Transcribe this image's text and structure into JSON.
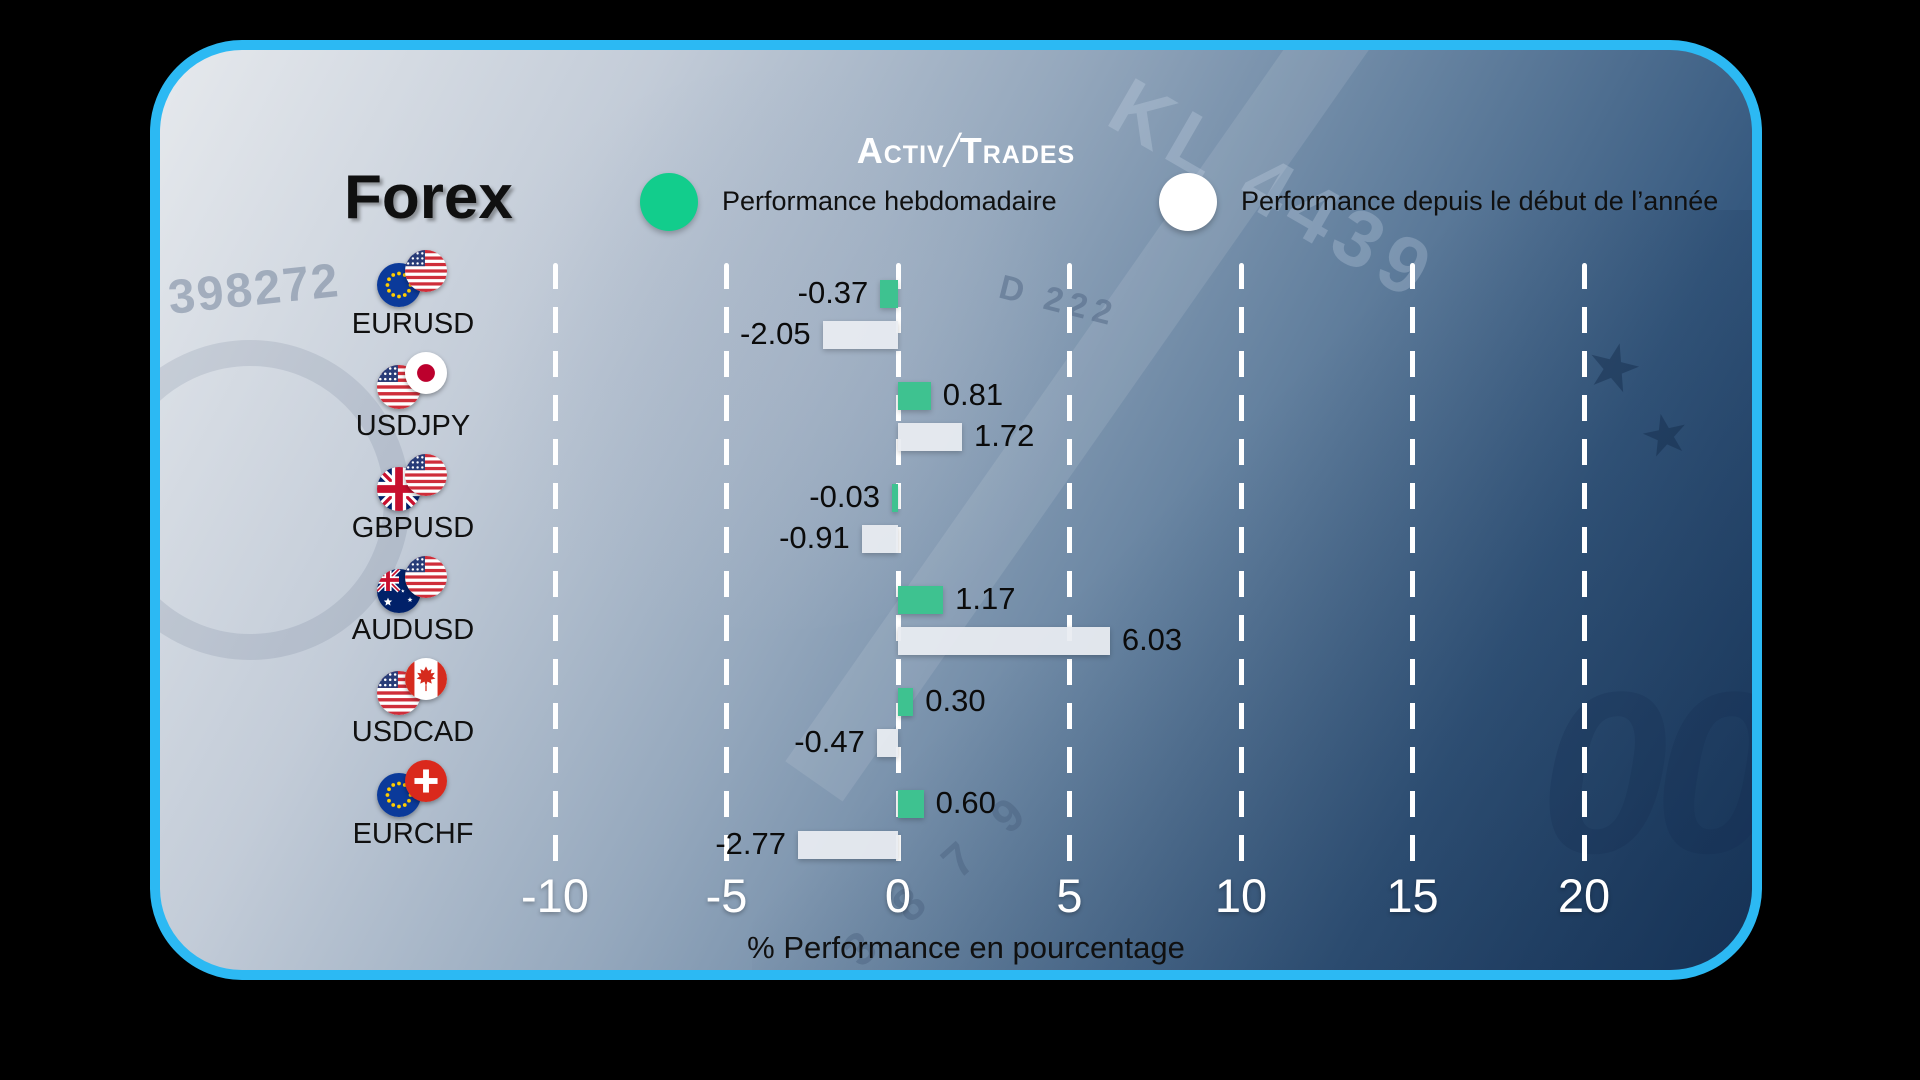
{
  "logo": {
    "activ": "Activ",
    "separator": "/",
    "trades": "Trades"
  },
  "title": "Forex",
  "legend": [
    {
      "label": "Performance hebdomadaire",
      "color": "#12cd8c"
    },
    {
      "label": "Performance depuis le début de l’année",
      "color": "#ffffff"
    }
  ],
  "chart_data": {
    "type": "bar",
    "orientation": "horizontal",
    "title": "Forex",
    "categories": [
      "EURUSD",
      "USDJPY",
      "GBPUSD",
      "AUDUSD",
      "USDCAD",
      "EURCHF"
    ],
    "series": [
      {
        "name": "Performance hebdomadaire",
        "color": "#3ec290",
        "values": [
          -0.37,
          0.81,
          -0.03,
          1.17,
          0.3,
          0.6
        ]
      },
      {
        "name": "Performance depuis le début de l’année",
        "color": "#e9ecf1",
        "values": [
          -2.05,
          1.72,
          -0.91,
          6.03,
          -0.47,
          -2.77
        ]
      }
    ],
    "xlabel": "% Performance en pourcentage",
    "ylabel": "",
    "x_ticks": [
      -10,
      -5,
      0,
      5,
      10,
      15,
      20
    ],
    "xlim": [
      -12.5,
      22.5
    ],
    "grid": "vertical-dashed-white",
    "legend_position": "top"
  },
  "pairs": [
    {
      "label": "EURUSD",
      "flags": [
        "eu",
        "us"
      ]
    },
    {
      "label": "USDJPY",
      "flags": [
        "us",
        "jp"
      ]
    },
    {
      "label": "GBPUSD",
      "flags": [
        "gb",
        "us"
      ]
    },
    {
      "label": "AUDUSD",
      "flags": [
        "au",
        "us"
      ]
    },
    {
      "label": "USDCAD",
      "flags": [
        "us",
        "ca"
      ]
    },
    {
      "label": "EURCHF",
      "flags": [
        "eu",
        "ch"
      ]
    }
  ],
  "background_texts": [
    "KL 4439",
    "398272",
    "D 222",
    "3 8 7 9"
  ],
  "colors": {
    "border": "#2cb9f3",
    "weekly_green": "#3ec290",
    "legend_green": "#12cd8c",
    "ytd_white": "#e9ecf1",
    "background_light": "#e6e9ed",
    "background_dark": "#1e3f66",
    "text_dark": "#101010",
    "text_white": "#ffffff"
  }
}
